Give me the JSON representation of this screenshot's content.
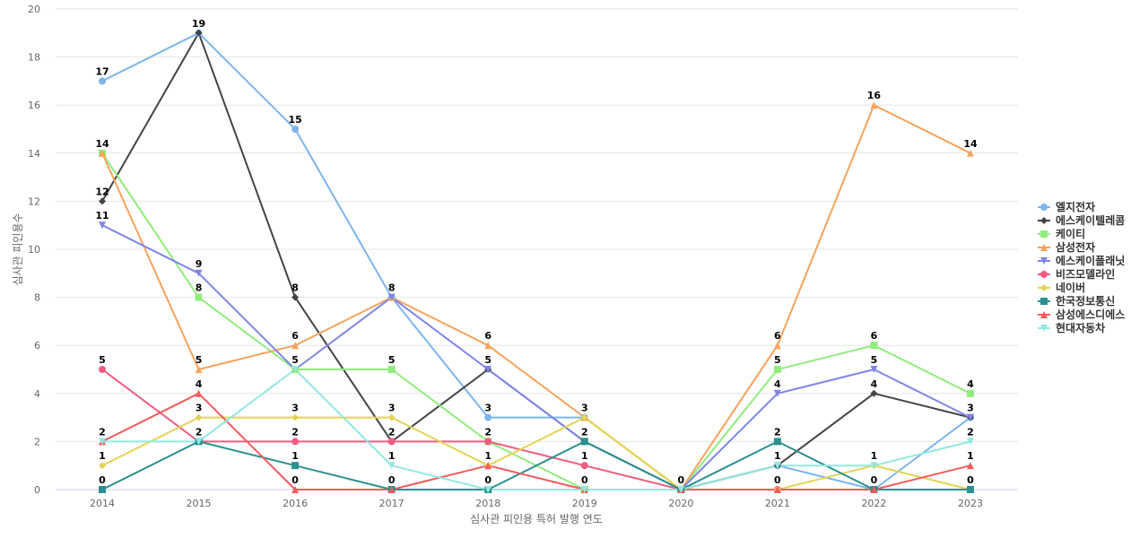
{
  "chart_data": {
    "type": "line",
    "title": "",
    "xlabel": "심사관 피인용 특허 발행 연도",
    "ylabel": "심사관 피인용수",
    "ylim": [
      0,
      20
    ],
    "yticks": [
      0,
      2,
      4,
      6,
      8,
      10,
      12,
      14,
      16,
      18,
      20
    ],
    "grid": true,
    "legend_position": "right",
    "categories": [
      "2014",
      "2015",
      "2016",
      "2017",
      "2018",
      "2019",
      "2020",
      "2021",
      "2022",
      "2023"
    ],
    "series": [
      {
        "name": "엘지전자",
        "color": "#7cb5ec",
        "marker": "circle",
        "values": [
          17,
          19,
          15,
          8,
          3,
          3,
          0,
          1,
          0,
          3
        ]
      },
      {
        "name": "에스케이텔레콤",
        "color": "#434348",
        "marker": "diamond",
        "values": [
          12,
          19,
          8,
          2,
          5,
          2,
          0,
          1,
          4,
          3
        ]
      },
      {
        "name": "케이티",
        "color": "#90ed7d",
        "marker": "square",
        "values": [
          14,
          8,
          5,
          5,
          2,
          0,
          0,
          5,
          6,
          4
        ]
      },
      {
        "name": "삼성전자",
        "color": "#f7a35c",
        "marker": "triangle",
        "values": [
          14,
          5,
          6,
          8,
          6,
          3,
          0,
          6,
          16,
          14
        ]
      },
      {
        "name": "에스케이플래닛",
        "color": "#8085e9",
        "marker": "triangle-down",
        "values": [
          11,
          9,
          5,
          8,
          5,
          2,
          0,
          4,
          5,
          3
        ]
      },
      {
        "name": "비즈모델라인",
        "color": "#f15c80",
        "marker": "circle",
        "values": [
          5,
          2,
          2,
          2,
          2,
          1,
          0,
          0,
          0,
          0
        ]
      },
      {
        "name": "네이버",
        "color": "#e4d354",
        "marker": "diamond",
        "values": [
          1,
          3,
          3,
          3,
          1,
          3,
          0,
          0,
          1,
          0
        ]
      },
      {
        "name": "한국정보통신",
        "color": "#2b908f",
        "marker": "square",
        "values": [
          0,
          2,
          1,
          0,
          0,
          2,
          0,
          2,
          0,
          0
        ]
      },
      {
        "name": "삼성에스디에스",
        "color": "#f45b5b",
        "marker": "triangle",
        "values": [
          2,
          4,
          0,
          0,
          1,
          0,
          0,
          0,
          0,
          1
        ]
      },
      {
        "name": "현대자동차",
        "color": "#91e8e1",
        "marker": "triangle-down",
        "values": [
          2,
          2,
          5,
          1,
          0,
          0,
          0,
          1,
          1,
          2
        ]
      }
    ],
    "data_labels": [
      {
        "x": "2014",
        "text": "17"
      },
      {
        "x": "2014",
        "text": "14"
      },
      {
        "x": "2014",
        "text": "12"
      },
      {
        "x": "2014",
        "text": "11"
      },
      {
        "x": "2014",
        "text": "5"
      },
      {
        "x": "2014",
        "text": "2"
      },
      {
        "x": "2014",
        "text": "1"
      },
      {
        "x": "2014",
        "text": "0"
      },
      {
        "x": "2015",
        "text": "19"
      },
      {
        "x": "2015",
        "text": "9"
      },
      {
        "x": "2015",
        "text": "8"
      },
      {
        "x": "2015",
        "text": "5"
      },
      {
        "x": "2015",
        "text": "4"
      },
      {
        "x": "2015",
        "text": "3"
      },
      {
        "x": "2015",
        "text": "2"
      },
      {
        "x": "2016",
        "text": "15"
      },
      {
        "x": "2016",
        "text": "8"
      },
      {
        "x": "2016",
        "text": "6"
      },
      {
        "x": "2016",
        "text": "5"
      },
      {
        "x": "2016",
        "text": "3"
      },
      {
        "x": "2016",
        "text": "2"
      },
      {
        "x": "2016",
        "text": "1"
      },
      {
        "x": "2016",
        "text": "0"
      },
      {
        "x": "2017",
        "text": "8"
      },
      {
        "x": "2017",
        "text": "5"
      },
      {
        "x": "2017",
        "text": "3"
      },
      {
        "x": "2017",
        "text": "2"
      },
      {
        "x": "2017",
        "text": "1"
      },
      {
        "x": "2017",
        "text": "0"
      },
      {
        "x": "2018",
        "text": "6"
      },
      {
        "x": "2018",
        "text": "5"
      },
      {
        "x": "2018",
        "text": "3"
      },
      {
        "x": "2018",
        "text": "2"
      },
      {
        "x": "2018",
        "text": "1"
      },
      {
        "x": "2018",
        "text": "0"
      },
      {
        "x": "2019",
        "text": "3"
      },
      {
        "x": "2019",
        "text": "2"
      },
      {
        "x": "2019",
        "text": "1"
      },
      {
        "x": "2019",
        "text": "0"
      },
      {
        "x": "2020",
        "text": "0"
      },
      {
        "x": "2021",
        "text": "6"
      },
      {
        "x": "2021",
        "text": "5"
      },
      {
        "x": "2021",
        "text": "4"
      },
      {
        "x": "2021",
        "text": "2"
      },
      {
        "x": "2021",
        "text": "1"
      },
      {
        "x": "2021",
        "text": "0"
      },
      {
        "x": "2022",
        "text": "16"
      },
      {
        "x": "2022",
        "text": "6"
      },
      {
        "x": "2022",
        "text": "5"
      },
      {
        "x": "2022",
        "text": "4"
      },
      {
        "x": "2022",
        "text": "1"
      },
      {
        "x": "2022",
        "text": "0"
      },
      {
        "x": "2023",
        "text": "14"
      },
      {
        "x": "2023",
        "text": "4"
      },
      {
        "x": "2023",
        "text": "3"
      },
      {
        "x": "2023",
        "text": "2"
      },
      {
        "x": "2023",
        "text": "1"
      },
      {
        "x": "2023",
        "text": "0"
      }
    ]
  }
}
